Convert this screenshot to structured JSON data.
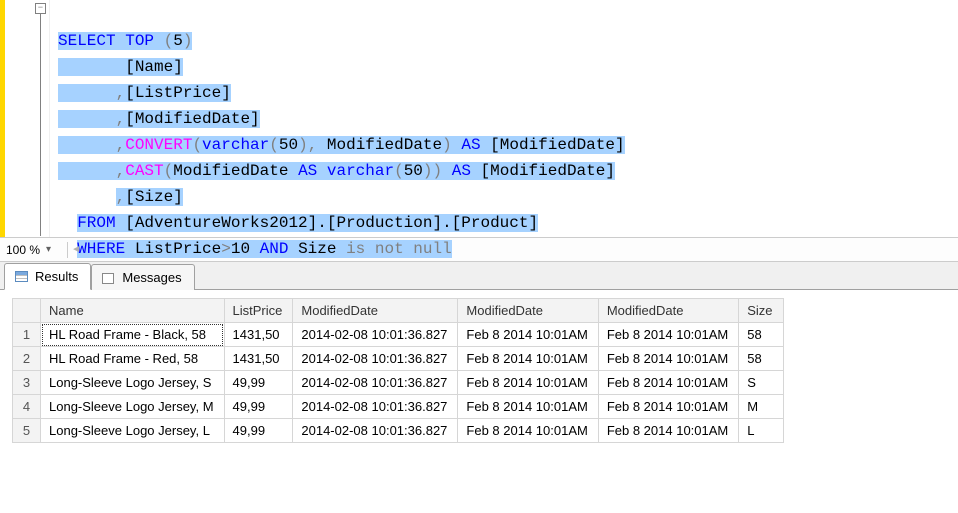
{
  "zoom": {
    "level": "100 %"
  },
  "sql": {
    "line1": {
      "kw_select": "SELECT",
      "kw_top": "TOP",
      "paren_open": "(",
      "top_n": "5",
      "paren_close": ")"
    },
    "line2": {
      "col": "[Name]"
    },
    "line3": {
      "comma": ",",
      "col": "[ListPrice]"
    },
    "line4": {
      "comma": ",",
      "col": "[ModifiedDate]"
    },
    "line5": {
      "comma": ",",
      "fn": "CONVERT",
      "paren_open": "(",
      "type_kw": "varchar",
      "type_open": "(",
      "type_len": "50",
      "type_close": ")",
      "arg_comma": ",",
      "arg": " ModifiedDate",
      "paren_close": ")",
      "kw_as": "AS",
      "alias": "[ModifiedDate]"
    },
    "line6": {
      "comma": ",",
      "fn": "CAST",
      "paren_open": "(",
      "arg": "ModifiedDate ",
      "kw_as": "AS",
      "type_kw": " varchar",
      "type_open": "(",
      "type_len": "50",
      "type_close": ")",
      "paren_close": ")",
      "kw_as2": "AS",
      "alias": "[ModifiedDate]"
    },
    "line7": {
      "comma": ",",
      "col": "[Size]"
    },
    "line8": {
      "kw_from": "FROM",
      "obj": "[AdventureWorks2012].[Production].[Product]"
    },
    "line9": {
      "kw_where": "WHERE",
      "expr1": " ListPrice",
      "op_gt": ">",
      "val": "10",
      "kw_and": "AND",
      "expr2": " Size ",
      "kw_isnotnull": "is not null"
    }
  },
  "tabs": {
    "results": "Results",
    "messages": "Messages"
  },
  "grid": {
    "columns": [
      "Name",
      "ListPrice",
      "ModifiedDate",
      "ModifiedDate",
      "ModifiedDate",
      "Size"
    ],
    "rows": [
      {
        "n": "1",
        "c": [
          "HL Road Frame - Black, 58",
          "1431,50",
          "2014-02-08 10:01:36.827",
          "Feb  8 2014 10:01AM",
          "Feb  8 2014 10:01AM",
          "58"
        ]
      },
      {
        "n": "2",
        "c": [
          "HL Road Frame - Red, 58",
          "1431,50",
          "2014-02-08 10:01:36.827",
          "Feb  8 2014 10:01AM",
          "Feb  8 2014 10:01AM",
          "58"
        ]
      },
      {
        "n": "3",
        "c": [
          "Long-Sleeve Logo Jersey, S",
          "49,99",
          "2014-02-08 10:01:36.827",
          "Feb  8 2014 10:01AM",
          "Feb  8 2014 10:01AM",
          "S"
        ]
      },
      {
        "n": "4",
        "c": [
          "Long-Sleeve Logo Jersey, M",
          "49,99",
          "2014-02-08 10:01:36.827",
          "Feb  8 2014 10:01AM",
          "Feb  8 2014 10:01AM",
          "M"
        ]
      },
      {
        "n": "5",
        "c": [
          "Long-Sleeve Logo Jersey, L",
          "49,99",
          "2014-02-08 10:01:36.827",
          "Feb  8 2014 10:01AM",
          "Feb  8 2014 10:01AM",
          "L"
        ]
      }
    ]
  },
  "fold_symbol": "−",
  "scroll_arrow": "◄"
}
